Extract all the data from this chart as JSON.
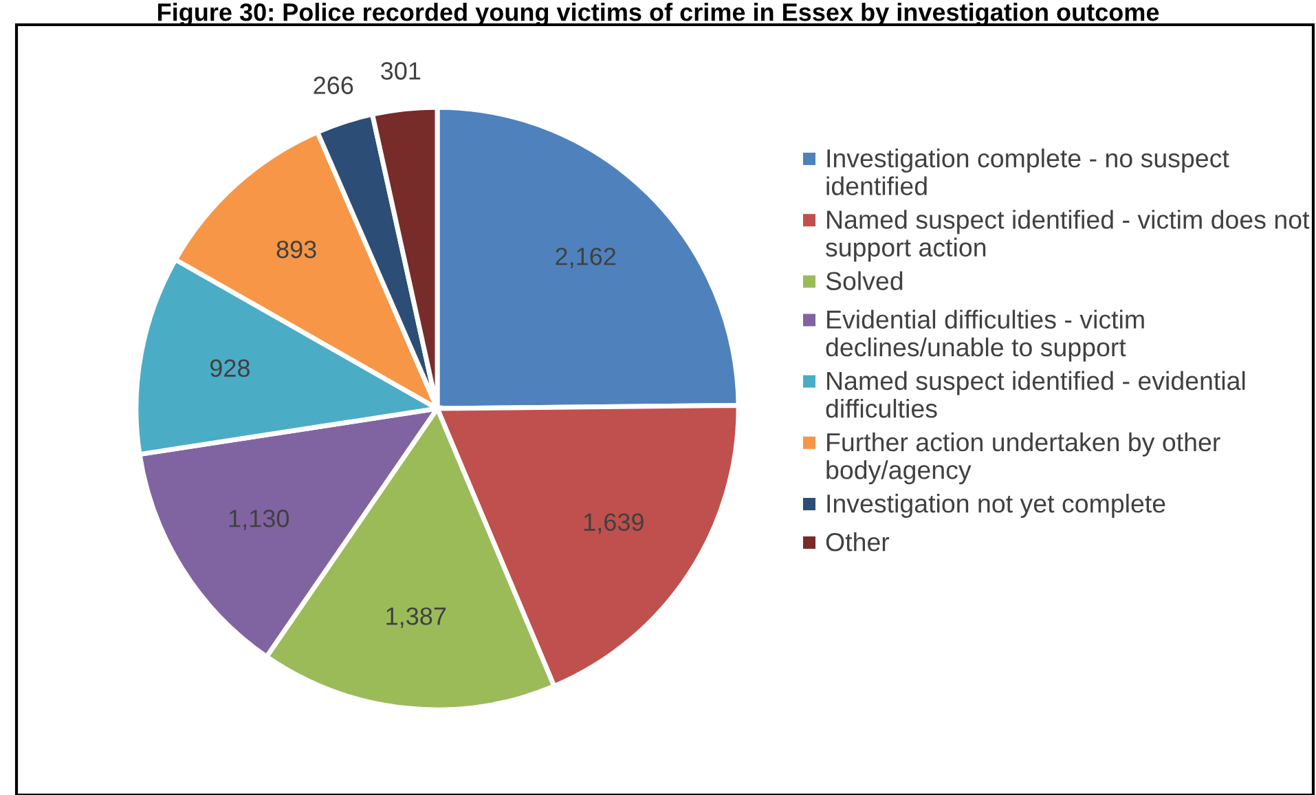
{
  "chart_data": {
    "type": "pie",
    "title": "Figure 30: Police recorded young victims of crime in Essex by investigation outcome",
    "categories": [
      "Investigation complete - no suspect identified",
      "Named suspect identified - victim does not support action",
      "Solved",
      "Evidential difficulties - victim declines/unable to support",
      "Named suspect identified - evidential difficulties",
      "Further action undertaken by other body/agency",
      "Investigation not yet complete",
      "Other"
    ],
    "values": [
      2162,
      1639,
      1387,
      1130,
      928,
      893,
      266,
      301
    ],
    "value_labels": [
      "2,162",
      "1,639",
      "1,387",
      "1,130",
      "928",
      "893",
      "266",
      "301"
    ],
    "colors": [
      "#4f81bd",
      "#c0504d",
      "#9bbb59",
      "#8064a2",
      "#4bacc6",
      "#f79646",
      "#2c4d75",
      "#772c2a"
    ],
    "legend": "right"
  }
}
